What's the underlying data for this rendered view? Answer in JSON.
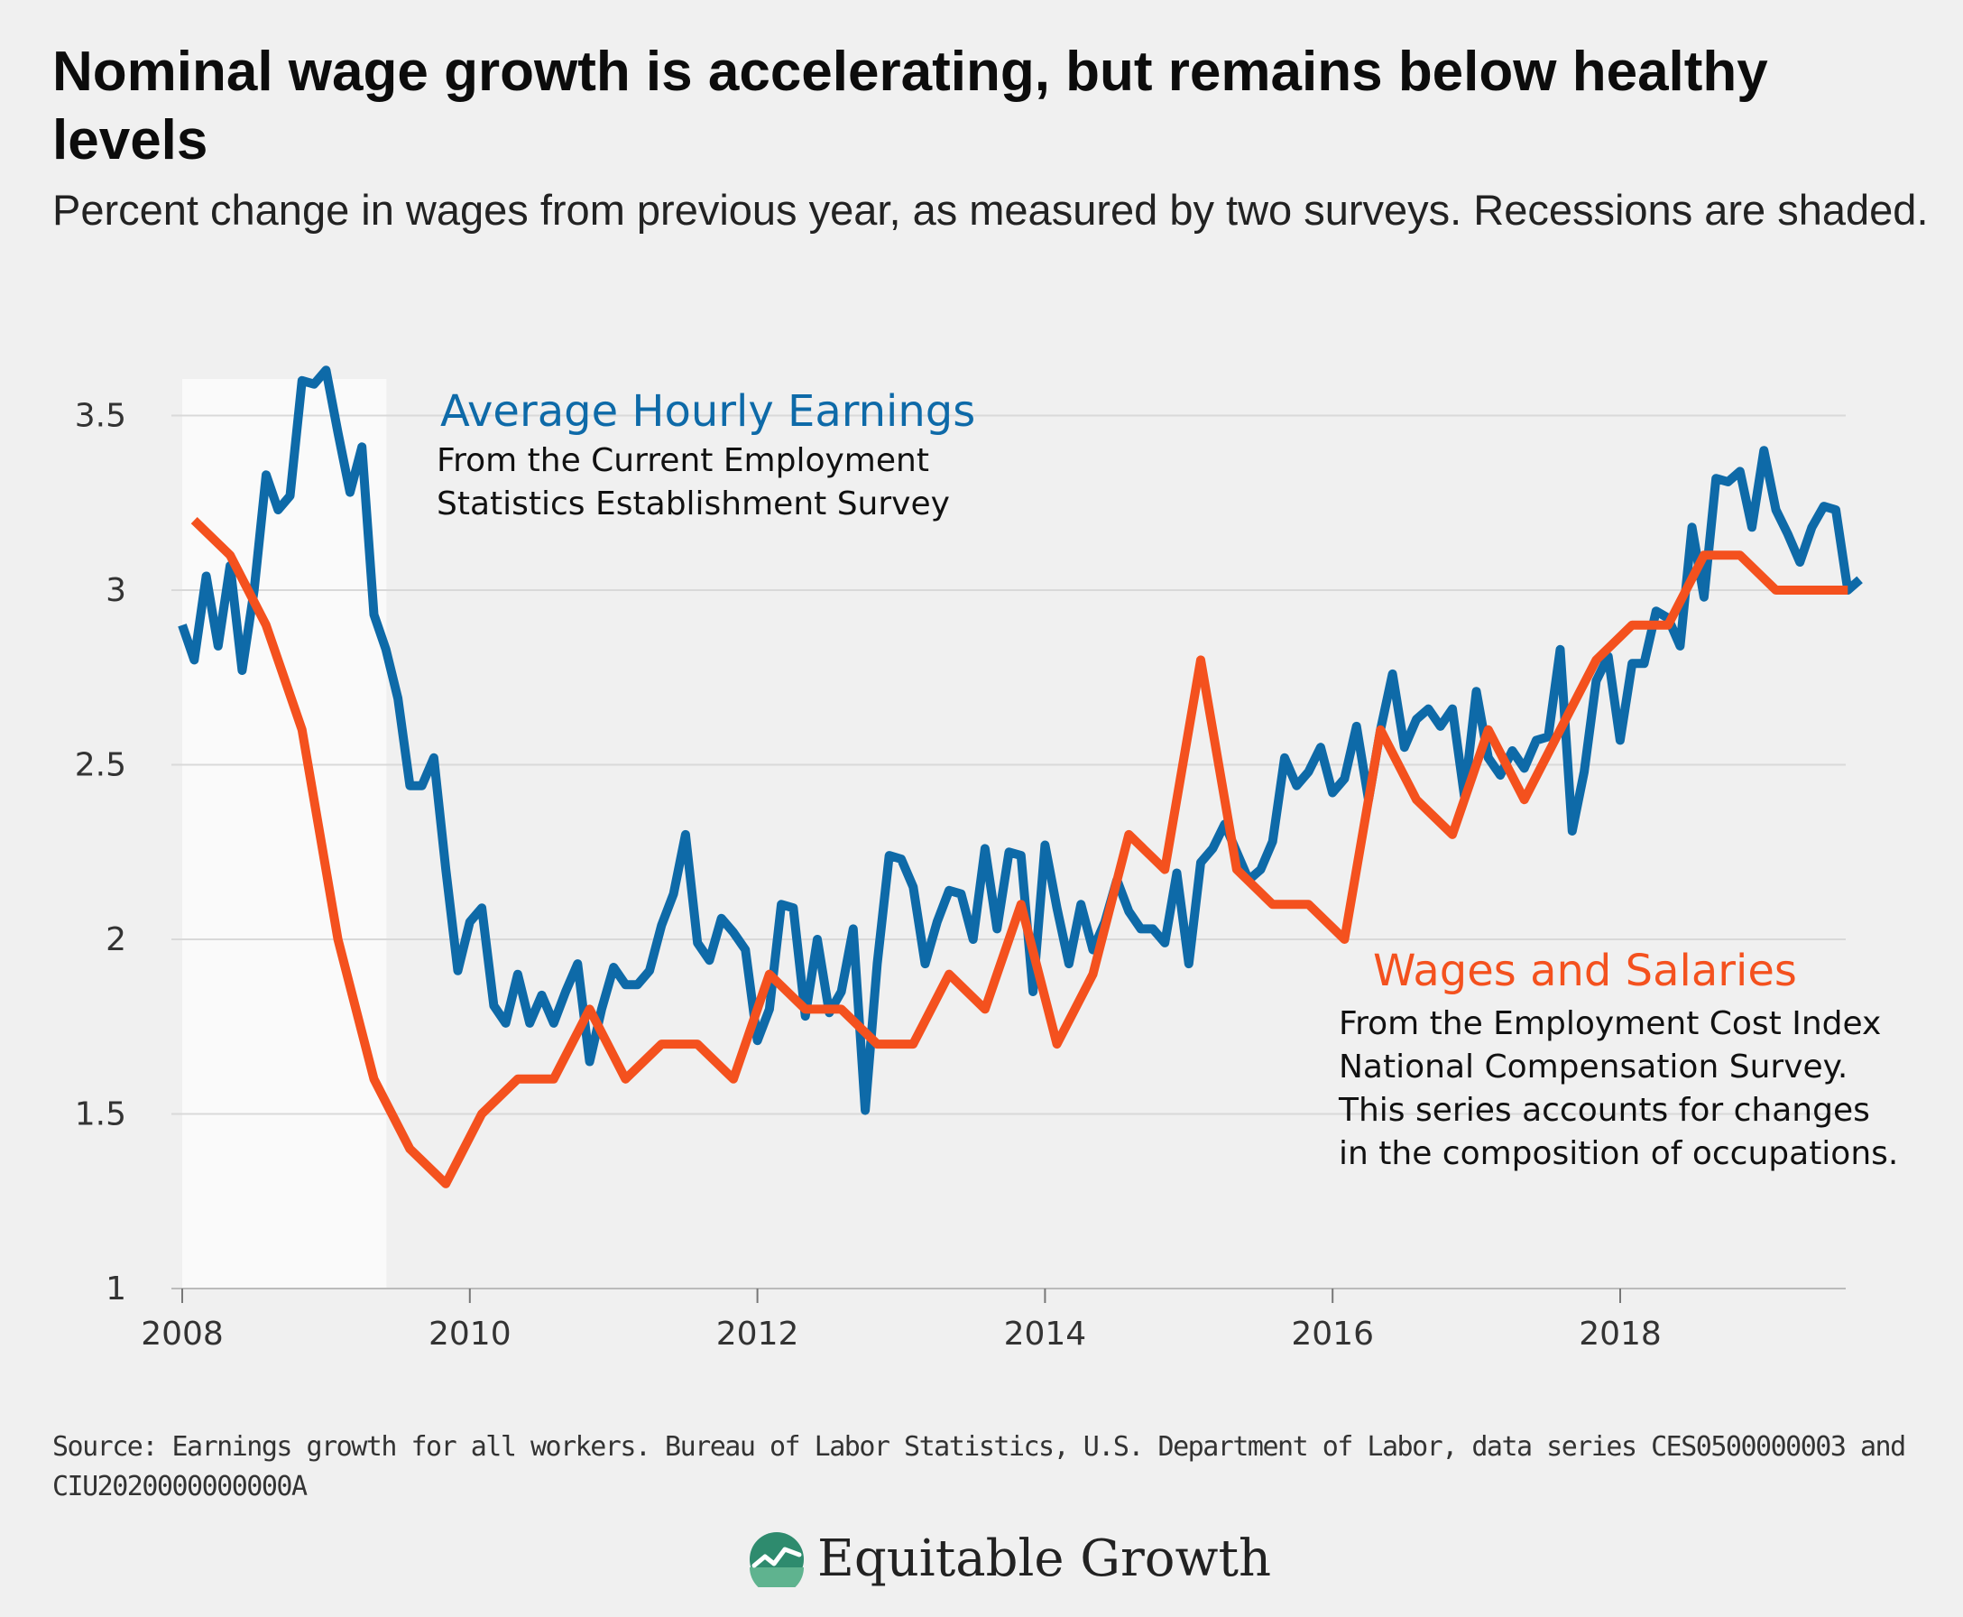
{
  "title": "Nominal wage growth is accelerating, but remains below healthy levels",
  "subtitle": "Percent change in wages from previous year, as measured by two surveys. Recessions are shaded.",
  "source": "Source: Earnings growth for all workers. Bureau of Labor Statistics, U.S. Department of Labor, data series CES0500000003 and CIU2020000000000A",
  "brand": {
    "name": "Equitable Growth",
    "logo_icon": "growth-chart-logo-icon"
  },
  "colors": {
    "ahe": "#0e6aa8",
    "wages": "#f4511e",
    "recession": "#fafafa",
    "grid": "#d9d9d9",
    "background": "#f0f0f0"
  },
  "annotations": {
    "ahe_label": "Average Hourly Earnings",
    "ahe_desc": [
      "From the Current Employment",
      "Statistics Establishment Survey"
    ],
    "wages_label": "Wages and Salaries",
    "wages_desc": [
      "From the Employment Cost Index",
      "National Compensation Survey.",
      "This series accounts for changes",
      "in the composition of occupations."
    ]
  },
  "chart_data": {
    "type": "line",
    "xlim": [
      2008,
      2019.75
    ],
    "ylim": [
      1,
      3.6
    ],
    "x_ticks": [
      2008,
      2010,
      2012,
      2014,
      2016,
      2018
    ],
    "y_ticks": [
      1,
      1.5,
      2,
      2.5,
      3,
      3.5
    ],
    "y_tick_labels": [
      "1",
      "1.5",
      "2",
      "2.5",
      "3",
      "3.5"
    ],
    "grid": "horizontal",
    "recessions": [
      [
        2008.0,
        2009.42
      ]
    ],
    "series": [
      {
        "name": "Average Hourly Earnings",
        "start": 2008.0,
        "step": 0.08333,
        "values": [
          2.9,
          2.8,
          3.04,
          2.84,
          3.07,
          2.77,
          3.0,
          3.33,
          3.23,
          3.27,
          3.6,
          3.59,
          3.63,
          3.45,
          3.28,
          3.41,
          2.93,
          2.83,
          2.69,
          2.44,
          2.44,
          2.52,
          2.2,
          1.91,
          2.05,
          2.09,
          1.81,
          1.76,
          1.9,
          1.76,
          1.84,
          1.76,
          1.85,
          1.93,
          1.65,
          1.8,
          1.92,
          1.87,
          1.87,
          1.91,
          2.04,
          2.13,
          2.3,
          1.99,
          1.94,
          2.06,
          2.02,
          1.97,
          1.71,
          1.8,
          2.1,
          2.09,
          1.78,
          2.0,
          1.79,
          1.85,
          2.03,
          1.51,
          1.93,
          2.24,
          2.23,
          2.15,
          1.93,
          2.05,
          2.14,
          2.13,
          2.0,
          2.26,
          2.03,
          2.25,
          2.24,
          1.85,
          2.27,
          2.09,
          1.93,
          2.1,
          1.97,
          2.05,
          2.17,
          2.08,
          2.03,
          2.03,
          1.99,
          2.19,
          1.93,
          2.22,
          2.26,
          2.33,
          2.25,
          2.17,
          2.2,
          2.28,
          2.52,
          2.44,
          2.48,
          2.55,
          2.42,
          2.46,
          2.61,
          2.4,
          2.6,
          2.76,
          2.55,
          2.63,
          2.66,
          2.61,
          2.66,
          2.41,
          2.71,
          2.52,
          2.47,
          2.54,
          2.49,
          2.57,
          2.58,
          2.83,
          2.31,
          2.48,
          2.74,
          2.81,
          2.57,
          2.79,
          2.79,
          2.94,
          2.92,
          2.84,
          3.18,
          2.98,
          3.32,
          3.31,
          3.34,
          3.18,
          3.4,
          3.23,
          3.16,
          3.08,
          3.18,
          3.24,
          3.23,
          3.0,
          3.03
        ]
      },
      {
        "name": "Wages and Salaries",
        "start": 2008.083,
        "step": 0.25,
        "values": [
          3.2,
          3.1,
          2.9,
          2.6,
          2.0,
          1.6,
          1.4,
          1.3,
          1.5,
          1.6,
          1.6,
          1.8,
          1.6,
          1.7,
          1.7,
          1.6,
          1.9,
          1.8,
          1.8,
          1.7,
          1.7,
          1.9,
          1.8,
          2.1,
          1.7,
          1.9,
          2.3,
          2.2,
          2.8,
          2.2,
          2.1,
          2.1,
          2.0,
          2.6,
          2.4,
          2.3,
          2.6,
          2.4,
          2.6,
          2.8,
          2.9,
          2.9,
          3.1,
          3.1,
          3.0,
          3.0,
          3.0
        ]
      }
    ]
  }
}
